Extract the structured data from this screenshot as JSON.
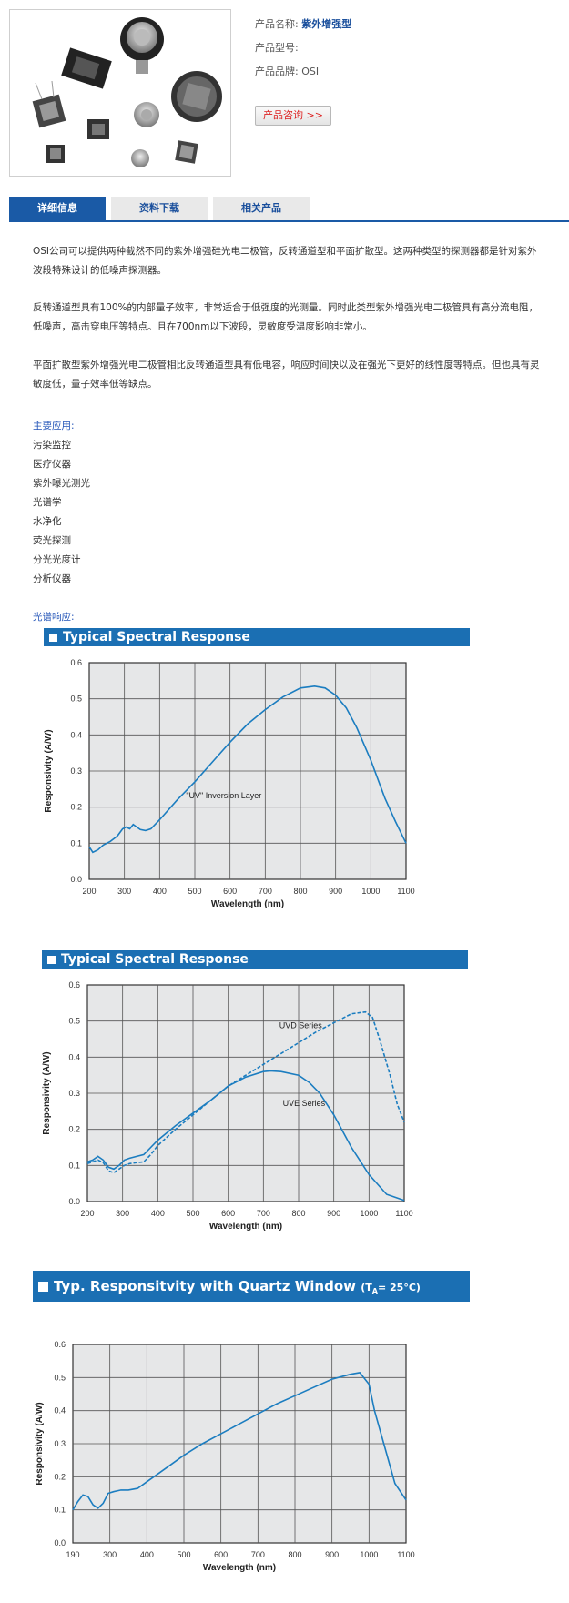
{
  "product": {
    "name_label": "产品名称:",
    "name_value": "紫外增强型",
    "model_label": "产品型号:",
    "model_value": "",
    "brand_label": "产品品牌:",
    "brand_value": "OSI",
    "consult_label": "产品咨询 >>"
  },
  "tabs": [
    "详细信息",
    "资料下载",
    "相关产品"
  ],
  "description": {
    "p1": "OSI公司可以提供两种截然不同的紫外增强硅光电二极管，反转通道型和平面扩散型。这两种类型的探测器都是针对紫外波段特殊设计的低噪声探测器。",
    "p2": "反转通道型具有100%的内部量子效率，非常适合于低强度的光测量。同时此类型紫外增强光电二极管具有高分流电阻，低噪声，高击穿电压等特点。且在700nm以下波段，灵敏度受温度影响非常小。",
    "p3": "平面扩散型紫外增强光电二极管相比反转通道型具有低电容，响应时间快以及在强光下更好的线性度等特点。但也具有灵敏度低，量子效率低等缺点。"
  },
  "applications": {
    "heading": "主要应用:",
    "items": [
      "污染监控",
      "医疗仪器",
      "紫外曝光测光",
      "光谱学",
      "水净化",
      "荧光探测",
      "分光光度计",
      "分析仪器"
    ]
  },
  "spectral_heading": "光谱响应:",
  "colors": {
    "accent": "#1a5aa6",
    "curve": "#1b7dc0",
    "chart_bg": "#e6e7e8"
  },
  "chart_data": [
    {
      "type": "line",
      "title": "Typical Spectral Response",
      "xlabel": "Wavelength (nm)",
      "ylabel": "Responsivity (A/W)",
      "xlim": [
        200,
        1100
      ],
      "ylim": [
        0,
        0.6
      ],
      "xticks": [
        200,
        300,
        400,
        500,
        600,
        700,
        800,
        900,
        1000,
        1100
      ],
      "yticks": [
        0.0,
        0.1,
        0.2,
        0.3,
        0.4,
        0.5,
        0.6
      ],
      "grid": true,
      "annotation": "\"UV\" Inversion Layer",
      "series": [
        {
          "style": "solid",
          "x": [
            200,
            210,
            225,
            240,
            260,
            280,
            295,
            305,
            315,
            325,
            335,
            345,
            360,
            375,
            400,
            450,
            500,
            550,
            600,
            650,
            700,
            750,
            800,
            840,
            870,
            900,
            930,
            960,
            1000,
            1040,
            1070,
            1100
          ],
          "y": [
            0.09,
            0.075,
            0.082,
            0.095,
            0.105,
            0.12,
            0.14,
            0.145,
            0.14,
            0.152,
            0.145,
            0.138,
            0.135,
            0.14,
            0.165,
            0.22,
            0.27,
            0.325,
            0.38,
            0.43,
            0.47,
            0.505,
            0.53,
            0.535,
            0.53,
            0.51,
            0.475,
            0.42,
            0.33,
            0.225,
            0.16,
            0.1
          ]
        }
      ]
    },
    {
      "type": "line",
      "title": "Typical Spectral Response",
      "xlabel": "Wavelength (nm)",
      "ylabel": "Responsivity (A/W)",
      "xlim": [
        200,
        1100
      ],
      "ylim": [
        0,
        0.6
      ],
      "xticks": [
        200,
        300,
        400,
        500,
        600,
        700,
        800,
        900,
        1000,
        1100
      ],
      "yticks": [
        0.0,
        0.1,
        0.2,
        0.3,
        0.4,
        0.5,
        0.6
      ],
      "grid": true,
      "series": [
        {
          "name": "UVD Series",
          "style": "dashed",
          "x": [
            200,
            215,
            230,
            245,
            260,
            275,
            290,
            305,
            320,
            340,
            360,
            380,
            400,
            450,
            500,
            550,
            600,
            650,
            700,
            750,
            800,
            850,
            900,
            950,
            990,
            1010,
            1030,
            1060,
            1080,
            1100
          ],
          "y": [
            0.105,
            0.11,
            0.115,
            0.108,
            0.085,
            0.08,
            0.09,
            0.1,
            0.105,
            0.108,
            0.11,
            0.13,
            0.155,
            0.2,
            0.24,
            0.28,
            0.32,
            0.35,
            0.38,
            0.41,
            0.44,
            0.47,
            0.495,
            0.52,
            0.525,
            0.51,
            0.45,
            0.35,
            0.27,
            0.22
          ]
        },
        {
          "name": "UVE Series",
          "style": "solid",
          "x": [
            200,
            215,
            230,
            245,
            260,
            275,
            290,
            305,
            320,
            340,
            360,
            380,
            400,
            450,
            500,
            550,
            600,
            650,
            700,
            720,
            750,
            800,
            830,
            860,
            900,
            950,
            1000,
            1050,
            1100
          ],
          "y": [
            0.11,
            0.115,
            0.125,
            0.115,
            0.095,
            0.09,
            0.1,
            0.115,
            0.12,
            0.125,
            0.13,
            0.15,
            0.17,
            0.21,
            0.245,
            0.28,
            0.32,
            0.345,
            0.36,
            0.362,
            0.36,
            0.35,
            0.33,
            0.3,
            0.24,
            0.15,
            0.075,
            0.02,
            0.003
          ]
        }
      ],
      "series_labels": [
        "UVD Series",
        "UVE Series"
      ]
    },
    {
      "type": "line",
      "title": "Typ. Responsitvity with Quartz Window",
      "title_suffix": "(T",
      "title_sub": "A",
      "title_end": "= 25°C)",
      "xlabel": "Wavelength (nm)",
      "ylabel": "Responsivity (A/W)",
      "xlim": [
        190,
        1100
      ],
      "ylim": [
        0,
        0.6
      ],
      "xticks": [
        190,
        300,
        400,
        500,
        600,
        700,
        800,
        900,
        1000,
        1100
      ],
      "yticks": [
        0.0,
        0.1,
        0.2,
        0.3,
        0.4,
        0.5,
        0.6
      ],
      "grid": true,
      "series": [
        {
          "style": "solid",
          "x": [
            190,
            205,
            220,
            235,
            250,
            265,
            280,
            295,
            310,
            330,
            350,
            375,
            400,
            450,
            500,
            550,
            600,
            650,
            700,
            750,
            800,
            850,
            900,
            950,
            975,
            1000,
            1015,
            1040,
            1070,
            1100
          ],
          "y": [
            0.1,
            0.125,
            0.145,
            0.14,
            0.115,
            0.105,
            0.12,
            0.15,
            0.155,
            0.16,
            0.16,
            0.165,
            0.185,
            0.225,
            0.265,
            0.3,
            0.33,
            0.36,
            0.39,
            0.42,
            0.445,
            0.47,
            0.495,
            0.51,
            0.515,
            0.48,
            0.4,
            0.3,
            0.18,
            0.13
          ]
        }
      ]
    }
  ]
}
